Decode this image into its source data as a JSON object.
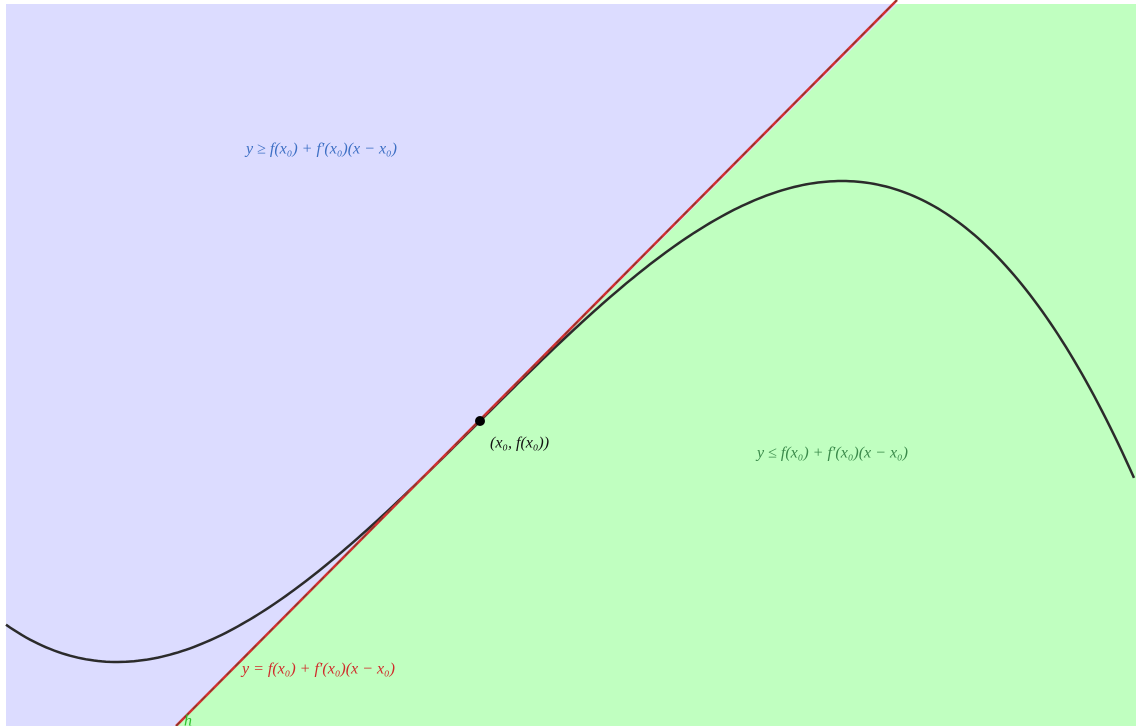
{
  "labels": {
    "upper_region": "y ≥ f(x₀) + f′(x₀)(x − x₀)",
    "point": "(x₀, f(x₀))",
    "lower_region": "y ≤ f(x₀) + f′(x₀)(x − x₀)",
    "tangent": "y = f(x₀) + f′(x₀)(x − x₀)",
    "corner": "h"
  }
}
